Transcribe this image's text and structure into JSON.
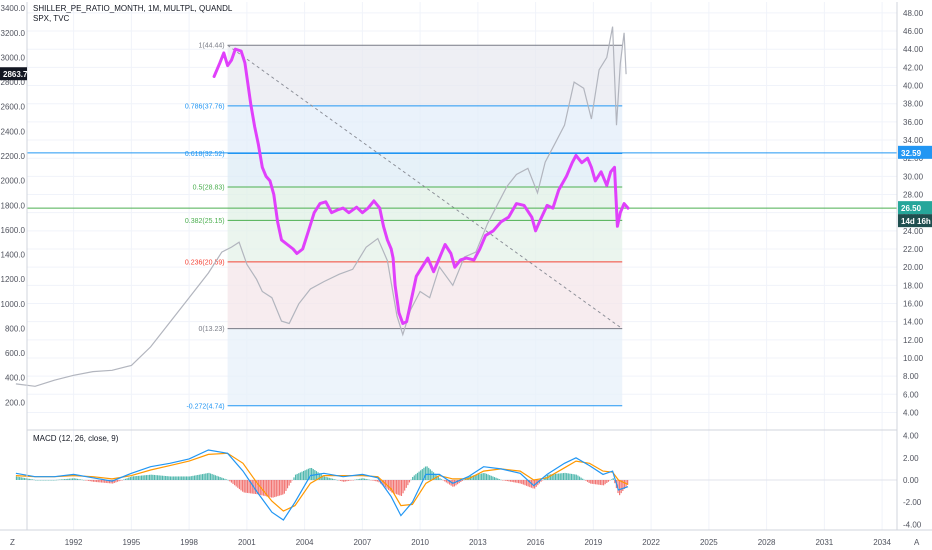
{
  "header": {
    "symbol_line": "SHILLER_PE_RATIO_MONTH, 1M, MULTPL, QUANDL",
    "overlay_line": "SPX, TVC"
  },
  "macd_title": "MACD (12, 26, close, 9)",
  "bottom_left_label": "Z",
  "bottom_right_label": "A",
  "colors": {
    "pe_line": "#e040fb",
    "spx_line": "#b2b5be",
    "macd": "#2196f3",
    "signal": "#ff9800",
    "hist_pos": "#26a69a",
    "hist_neg": "#ef5350",
    "hline_blue": "#2196f3",
    "hline_green": "#4caf50"
  },
  "chart_data": {
    "type": "line",
    "x_ticks": [
      "1992",
      "1995",
      "1998",
      "2001",
      "2004",
      "2007",
      "2010",
      "2013",
      "2016",
      "2019",
      "2022",
      "2025",
      "2028",
      "2031",
      "2034"
    ],
    "left_axis_ticks": [
      "3400.0",
      "3200.0",
      "3000.0",
      "2800.0",
      "2600.0",
      "2400.0",
      "2200.0",
      "2000.0",
      "1800.0",
      "1600.0",
      "1400.0",
      "1200.0",
      "1000.0",
      "800.0",
      "600.0",
      "400.0",
      "200.0"
    ],
    "left_axis_range": [
      0,
      3450
    ],
    "right_axis_ticks": [
      "48.00",
      "46.00",
      "44.00",
      "42.00",
      "40.00",
      "38.00",
      "36.00",
      "34.00",
      "32.00",
      "30.00",
      "28.00",
      "26.00",
      "24.00",
      "22.00",
      "20.00",
      "18.00",
      "16.00",
      "14.00",
      "12.00",
      "10.00",
      "8.00",
      "6.00",
      "4.00"
    ],
    "right_axis_range": [
      2.4,
      49.2
    ],
    "macd_axis_ticks": [
      "4.00",
      "2.00",
      "0.00",
      "-2.00",
      "-4.00"
    ],
    "macd_axis_range": [
      -4.5,
      4.5
    ],
    "badges": {
      "spx_price": "2863.7",
      "pe_level": "32.59",
      "pe_current": "26.50",
      "countdown": "14d 16h"
    },
    "horizontal_lines": [
      32.59,
      26.5
    ],
    "fibonacci": {
      "range_x": [
        2000.0,
        2020.5
      ],
      "levels": [
        {
          "ratio": "1",
          "value": 44.44,
          "label": "1(44.44)",
          "color": "#787b86"
        },
        {
          "ratio": "0.786",
          "value": 37.76,
          "label": "0.786(37.76)",
          "color": "#2196f3"
        },
        {
          "ratio": "0.618",
          "value": 32.52,
          "label": "0.618(32.52)",
          "color": "#2196f3"
        },
        {
          "ratio": "0.5",
          "value": 28.83,
          "label": "0.5(28.83)",
          "color": "#4caf50"
        },
        {
          "ratio": "0.382",
          "value": 25.15,
          "label": "0.382(25.15)",
          "color": "#4caf50"
        },
        {
          "ratio": "0.236",
          "value": 20.59,
          "label": "0.236(20.59)",
          "color": "#f44336"
        },
        {
          "ratio": "0",
          "value": 13.23,
          "label": "0(13.23)",
          "color": "#787b86"
        },
        {
          "ratio": "-0.272",
          "value": 4.74,
          "label": "-0.272(4.74)",
          "color": "#2196f3"
        }
      ],
      "trendline": [
        [
          2000.0,
          44.44
        ],
        [
          2020.5,
          13.23
        ]
      ]
    },
    "series": [
      {
        "name": "SHILLER_PE_RATIO_MONTH",
        "axis": "right",
        "points": [
          [
            1999.3,
            41.0
          ],
          [
            1999.6,
            42.5
          ],
          [
            1999.8,
            43.6
          ],
          [
            2000.0,
            42.2
          ],
          [
            2000.2,
            42.8
          ],
          [
            2000.4,
            44.0
          ],
          [
            2000.7,
            43.8
          ],
          [
            2000.9,
            42.5
          ],
          [
            2001.2,
            38.0
          ],
          [
            2001.4,
            35.5
          ],
          [
            2001.6,
            33.5
          ],
          [
            2001.8,
            31.0
          ],
          [
            2002.0,
            30.0
          ],
          [
            2002.2,
            29.5
          ],
          [
            2002.4,
            28.0
          ],
          [
            2002.6,
            25.0
          ],
          [
            2002.8,
            23.0
          ],
          [
            2003.1,
            22.5
          ],
          [
            2003.4,
            22.0
          ],
          [
            2003.6,
            21.5
          ],
          [
            2003.9,
            22.0
          ],
          [
            2004.2,
            24.0
          ],
          [
            2004.5,
            26.0
          ],
          [
            2004.8,
            27.0
          ],
          [
            2005.1,
            27.2
          ],
          [
            2005.4,
            26.0
          ],
          [
            2005.7,
            26.3
          ],
          [
            2006.0,
            26.5
          ],
          [
            2006.3,
            26.0
          ],
          [
            2006.7,
            26.6
          ],
          [
            2007.0,
            26.0
          ],
          [
            2007.3,
            26.5
          ],
          [
            2007.6,
            27.3
          ],
          [
            2007.9,
            26.5
          ],
          [
            2008.1,
            24.5
          ],
          [
            2008.3,
            23.0
          ],
          [
            2008.5,
            22.0
          ],
          [
            2008.6,
            21.0
          ],
          [
            2008.7,
            18.0
          ],
          [
            2008.8,
            16.5
          ],
          [
            2008.9,
            15.0
          ],
          [
            2009.1,
            13.8
          ],
          [
            2009.3,
            14.0
          ],
          [
            2009.5,
            16.0
          ],
          [
            2009.8,
            19.0
          ],
          [
            2010.1,
            20.0
          ],
          [
            2010.4,
            21.0
          ],
          [
            2010.7,
            19.5
          ],
          [
            2011.0,
            21.0
          ],
          [
            2011.3,
            22.5
          ],
          [
            2011.6,
            21.5
          ],
          [
            2011.8,
            20.0
          ],
          [
            2012.1,
            20.8
          ],
          [
            2012.4,
            21.0
          ],
          [
            2012.8,
            20.8
          ],
          [
            2013.1,
            22.0
          ],
          [
            2013.4,
            23.5
          ],
          [
            2013.8,
            24.0
          ],
          [
            2014.2,
            25.0
          ],
          [
            2014.6,
            25.5
          ],
          [
            2015.0,
            27.0
          ],
          [
            2015.4,
            26.8
          ],
          [
            2015.8,
            25.5
          ],
          [
            2016.0,
            24.0
          ],
          [
            2016.2,
            25.0
          ],
          [
            2016.6,
            26.8
          ],
          [
            2016.9,
            26.5
          ],
          [
            2017.2,
            28.5
          ],
          [
            2017.6,
            30.0
          ],
          [
            2017.9,
            31.5
          ],
          [
            2018.1,
            32.3
          ],
          [
            2018.4,
            31.5
          ],
          [
            2018.7,
            32.0
          ],
          [
            2018.9,
            31.0
          ],
          [
            2019.1,
            29.5
          ],
          [
            2019.4,
            30.5
          ],
          [
            2019.7,
            29.0
          ],
          [
            2019.9,
            30.5
          ],
          [
            2020.1,
            31.0
          ],
          [
            2020.25,
            24.5
          ],
          [
            2020.4,
            26.0
          ],
          [
            2020.6,
            27.0
          ],
          [
            2020.8,
            26.5
          ]
        ]
      },
      {
        "name": "SPX",
        "axis": "left",
        "points": [
          [
            1989.0,
            350
          ],
          [
            1990.0,
            330
          ],
          [
            1991.0,
            380
          ],
          [
            1992.0,
            420
          ],
          [
            1993.0,
            450
          ],
          [
            1994.0,
            460
          ],
          [
            1995.0,
            500
          ],
          [
            1996.0,
            650
          ],
          [
            1997.0,
            850
          ],
          [
            1998.0,
            1050
          ],
          [
            1999.0,
            1250
          ],
          [
            1999.7,
            1420
          ],
          [
            2000.2,
            1460
          ],
          [
            2000.6,
            1500
          ],
          [
            2001.0,
            1320
          ],
          [
            2001.5,
            1200
          ],
          [
            2001.8,
            1100
          ],
          [
            2002.3,
            1050
          ],
          [
            2002.8,
            860
          ],
          [
            2003.2,
            840
          ],
          [
            2003.7,
            1000
          ],
          [
            2004.3,
            1120
          ],
          [
            2005.0,
            1180
          ],
          [
            2005.8,
            1240
          ],
          [
            2006.5,
            1280
          ],
          [
            2007.2,
            1460
          ],
          [
            2007.8,
            1530
          ],
          [
            2008.3,
            1350
          ],
          [
            2008.8,
            900
          ],
          [
            2009.1,
            750
          ],
          [
            2009.5,
            950
          ],
          [
            2010.0,
            1100
          ],
          [
            2010.5,
            1050
          ],
          [
            2011.0,
            1300
          ],
          [
            2011.7,
            1150
          ],
          [
            2012.3,
            1380
          ],
          [
            2012.9,
            1420
          ],
          [
            2013.5,
            1650
          ],
          [
            2014.0,
            1800
          ],
          [
            2014.5,
            1950
          ],
          [
            2015.0,
            2050
          ],
          [
            2015.6,
            2100
          ],
          [
            2016.1,
            1900
          ],
          [
            2016.5,
            2150
          ],
          [
            2017.0,
            2300
          ],
          [
            2017.5,
            2450
          ],
          [
            2018.0,
            2800
          ],
          [
            2018.5,
            2750
          ],
          [
            2018.9,
            2500
          ],
          [
            2019.3,
            2900
          ],
          [
            2019.7,
            3000
          ],
          [
            2020.0,
            3250
          ],
          [
            2020.2,
            2450
          ],
          [
            2020.4,
            2950
          ],
          [
            2020.6,
            3200
          ],
          [
            2020.7,
            2863.7
          ]
        ]
      }
    ],
    "macd": {
      "macd_line": [
        [
          1989.0,
          0.6
        ],
        [
          1990.0,
          0.3
        ],
        [
          1991.0,
          0.3
        ],
        [
          1992.0,
          0.5
        ],
        [
          1993.0,
          0.2
        ],
        [
          1994.0,
          -0.1
        ],
        [
          1995.0,
          0.6
        ],
        [
          1996.0,
          1.2
        ],
        [
          1997.0,
          1.5
        ],
        [
          1998.0,
          1.9
        ],
        [
          1999.0,
          2.7
        ],
        [
          2000.0,
          2.4
        ],
        [
          2000.8,
          0.8
        ],
        [
          2001.5,
          -1.0
        ],
        [
          2002.3,
          -2.9
        ],
        [
          2002.9,
          -3.6
        ],
        [
          2003.5,
          -2.0
        ],
        [
          2004.3,
          0.4
        ],
        [
          2005.0,
          0.6
        ],
        [
          2006.0,
          0.3
        ],
        [
          2007.0,
          0.5
        ],
        [
          2007.8,
          0.2
        ],
        [
          2008.5,
          -1.5
        ],
        [
          2009.0,
          -3.2
        ],
        [
          2009.6,
          -2.0
        ],
        [
          2010.3,
          0.5
        ],
        [
          2011.0,
          0.5
        ],
        [
          2011.7,
          -0.3
        ],
        [
          2012.5,
          0.3
        ],
        [
          2013.3,
          1.2
        ],
        [
          2014.2,
          1.0
        ],
        [
          2015.2,
          0.6
        ],
        [
          2015.9,
          -0.5
        ],
        [
          2016.6,
          0.5
        ],
        [
          2017.5,
          1.5
        ],
        [
          2018.1,
          2.0
        ],
        [
          2018.8,
          1.3
        ],
        [
          2019.5,
          0.5
        ],
        [
          2020.0,
          0.8
        ],
        [
          2020.3,
          -0.9
        ],
        [
          2020.8,
          -0.6
        ]
      ],
      "signal_line": [
        [
          1989.0,
          0.4
        ],
        [
          1990.0,
          0.3
        ],
        [
          1991.0,
          0.3
        ],
        [
          1992.0,
          0.4
        ],
        [
          1993.0,
          0.3
        ],
        [
          1994.0,
          0.1
        ],
        [
          1995.0,
          0.4
        ],
        [
          1996.0,
          0.9
        ],
        [
          1997.0,
          1.3
        ],
        [
          1998.0,
          1.7
        ],
        [
          1999.0,
          2.3
        ],
        [
          2000.0,
          2.4
        ],
        [
          2000.8,
          1.5
        ],
        [
          2001.5,
          -0.2
        ],
        [
          2002.3,
          -1.9
        ],
        [
          2002.9,
          -2.8
        ],
        [
          2003.5,
          -2.3
        ],
        [
          2004.3,
          -0.3
        ],
        [
          2005.0,
          0.4
        ],
        [
          2006.0,
          0.4
        ],
        [
          2007.0,
          0.4
        ],
        [
          2007.8,
          0.3
        ],
        [
          2008.5,
          -0.8
        ],
        [
          2009.0,
          -2.3
        ],
        [
          2009.6,
          -2.2
        ],
        [
          2010.3,
          -0.3
        ],
        [
          2011.0,
          0.4
        ],
        [
          2011.7,
          0.1
        ],
        [
          2012.5,
          0.1
        ],
        [
          2013.3,
          0.8
        ],
        [
          2014.2,
          1.0
        ],
        [
          2015.2,
          0.8
        ],
        [
          2015.9,
          0.0
        ],
        [
          2016.6,
          0.2
        ],
        [
          2017.5,
          1.1
        ],
        [
          2018.1,
          1.7
        ],
        [
          2018.8,
          1.5
        ],
        [
          2019.5,
          0.8
        ],
        [
          2020.0,
          0.7
        ],
        [
          2020.3,
          0.0
        ],
        [
          2020.8,
          -0.4
        ]
      ]
    }
  }
}
